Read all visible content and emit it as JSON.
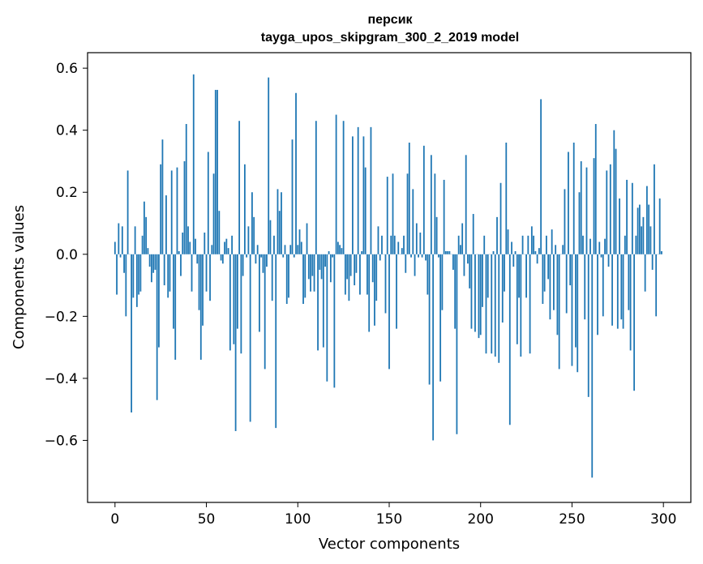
{
  "chart_data": {
    "type": "bar",
    "title": "персик",
    "subtitle": "tayga_upos_skipgram_300_2_2019 model",
    "xlabel": "Vector components",
    "ylabel": "Components values",
    "xlim": [
      -15,
      315
    ],
    "ylim": [
      -0.8,
      0.65
    ],
    "xticks": [
      0,
      50,
      100,
      150,
      200,
      250,
      300
    ],
    "xtick_labels": [
      "0",
      "50",
      "100",
      "150",
      "200",
      "250",
      "300"
    ],
    "yticks": [
      -0.6,
      -0.4,
      -0.2,
      0.0,
      0.2,
      0.4,
      0.6
    ],
    "ytick_labels": [
      "−0.6",
      "−0.4",
      "−0.2",
      "0.0",
      "0.2",
      "0.4",
      "0.6"
    ],
    "grid": false,
    "bar_color": "#1f77b4",
    "series": [
      {
        "values": [
          0.04,
          -0.13,
          0.1,
          -0.01,
          0.09,
          -0.06,
          -0.2,
          0.27,
          0.0,
          -0.51,
          -0.14,
          0.09,
          -0.17,
          -0.13,
          -0.12,
          0.06,
          0.17,
          0.12,
          0.02,
          -0.04,
          -0.09,
          -0.06,
          -0.05,
          -0.47,
          -0.3,
          0.29,
          0.37,
          -0.1,
          0.19,
          -0.14,
          -0.12,
          0.27,
          -0.24,
          -0.34,
          0.28,
          0.01,
          -0.07,
          0.07,
          0.3,
          0.42,
          0.09,
          0.04,
          -0.12,
          0.58,
          0.05,
          -0.03,
          -0.18,
          -0.34,
          -0.23,
          0.07,
          -0.12,
          0.33,
          -0.15,
          0.03,
          0.26,
          0.53,
          0.53,
          0.14,
          -0.02,
          -0.03,
          0.04,
          0.05,
          0.02,
          -0.31,
          0.06,
          -0.29,
          -0.57,
          -0.24,
          0.43,
          -0.32,
          -0.07,
          0.29,
          -0.01,
          0.09,
          -0.54,
          0.2,
          0.12,
          -0.03,
          0.03,
          -0.25,
          -0.01,
          -0.06,
          -0.37,
          -0.04,
          0.57,
          0.11,
          -0.15,
          0.06,
          -0.56,
          0.21,
          0.14,
          0.2,
          -0.01,
          0.03,
          -0.16,
          -0.14,
          0.03,
          0.37,
          -0.01,
          0.52,
          0.03,
          0.08,
          0.04,
          -0.16,
          -0.14,
          0.1,
          -0.08,
          -0.12,
          -0.07,
          -0.12,
          0.43,
          -0.31,
          -0.05,
          -0.08,
          -0.3,
          -0.04,
          -0.41,
          0.01,
          -0.09,
          -0.01,
          -0.43,
          0.45,
          0.04,
          0.03,
          0.02,
          0.43,
          -0.13,
          -0.08,
          -0.15,
          -0.07,
          0.38,
          -0.1,
          -0.06,
          0.41,
          -0.13,
          0.01,
          0.38,
          0.28,
          -0.13,
          -0.25,
          0.41,
          -0.09,
          -0.23,
          -0.15,
          0.09,
          -0.02,
          0.06,
          0.0,
          -0.19,
          0.25,
          -0.37,
          0.06,
          0.26,
          0.06,
          -0.24,
          0.04,
          0.0,
          0.02,
          0.06,
          -0.06,
          0.26,
          0.36,
          -0.01,
          0.21,
          -0.07,
          0.1,
          -0.01,
          0.07,
          -0.01,
          0.35,
          -0.02,
          -0.13,
          -0.42,
          0.32,
          -0.6,
          0.26,
          0.12,
          -0.01,
          -0.41,
          -0.18,
          0.24,
          0.01,
          0.01,
          0.01,
          0.0,
          -0.05,
          -0.24,
          -0.58,
          0.06,
          0.03,
          0.1,
          -0.07,
          0.32,
          -0.03,
          -0.11,
          -0.24,
          0.13,
          -0.25,
          0.0,
          -0.27,
          -0.26,
          -0.17,
          0.06,
          -0.32,
          -0.14,
          0.0,
          -0.32,
          0.01,
          -0.33,
          0.12,
          -0.35,
          0.23,
          -0.22,
          -0.12,
          0.36,
          0.08,
          -0.55,
          0.04,
          -0.04,
          0.01,
          -0.29,
          -0.14,
          -0.33,
          0.06,
          0.0,
          -0.14,
          0.06,
          -0.32,
          0.09,
          0.06,
          0.01,
          -0.03,
          0.02,
          0.5,
          -0.16,
          -0.12,
          0.06,
          -0.08,
          -0.21,
          0.08,
          -0.18,
          0.03,
          -0.26,
          -0.37,
          0.0,
          0.03,
          0.21,
          -0.19,
          0.33,
          -0.1,
          -0.36,
          0.36,
          -0.3,
          -0.38,
          0.2,
          0.3,
          0.06,
          -0.21,
          0.28,
          -0.46,
          0.05,
          -0.72,
          0.31,
          0.42,
          -0.26,
          0.04,
          -0.01,
          -0.2,
          0.05,
          0.27,
          -0.04,
          0.29,
          -0.23,
          0.4,
          0.34,
          -0.24,
          0.18,
          -0.21,
          -0.24,
          0.06,
          0.24,
          -0.18,
          -0.31,
          0.23,
          -0.44,
          0.06,
          0.15,
          0.16,
          0.09,
          0.12,
          -0.12,
          0.22,
          0.16,
          0.09,
          -0.05,
          0.29,
          -0.2,
          0.0,
          0.18,
          0.01
        ]
      }
    ]
  }
}
